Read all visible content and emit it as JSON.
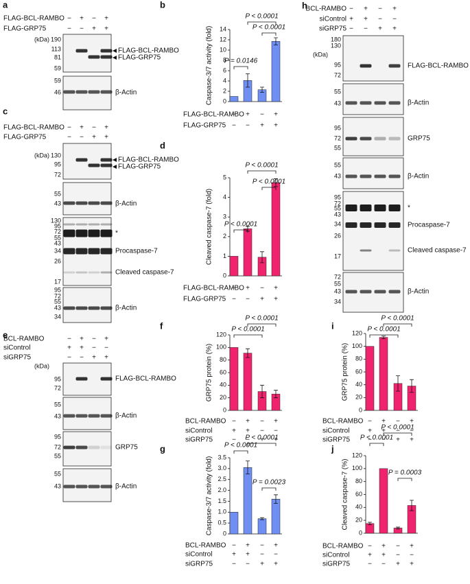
{
  "chart_data": [
    {
      "panel": "b",
      "type": "bar",
      "ylabel": "Caspase-3/7 activity (fold)",
      "color": "#6f8ff2",
      "values": [
        1,
        4.1,
        2.3,
        11.7
      ],
      "errors": [
        null,
        1.3,
        0.5,
        0.7
      ],
      "ylim": [
        0,
        14
      ],
      "yticks": [
        0,
        2,
        4,
        6,
        8,
        10,
        12,
        14
      ],
      "conditions": [
        {
          "name": "FLAG-BCL-RAMBO",
          "signs": [
            "−",
            "+",
            "−",
            "+"
          ]
        },
        {
          "name": "FLAG-GRP75",
          "signs": [
            "−",
            "−",
            "+",
            "+"
          ]
        }
      ],
      "comparisons": [
        "P = 0.0146",
        "P < 0.0001",
        "P < 0.0001"
      ]
    },
    {
      "panel": "d",
      "type": "bar",
      "ylabel": "Cleaved caspase-7 (fold)",
      "color": "#f0246e",
      "values": [
        1,
        2.4,
        0.95,
        4.75
      ],
      "errors": [
        null,
        0.12,
        0.28,
        0.2
      ],
      "ylim": [
        0,
        5
      ],
      "yticks": [
        0,
        1,
        2,
        3,
        4,
        5
      ],
      "conditions": [
        {
          "name": "FLAG-BCL-RAMBO",
          "signs": [
            "−",
            "+",
            "−",
            "+"
          ]
        },
        {
          "name": "FLAG-GRP75",
          "signs": [
            "−",
            "−",
            "+",
            "+"
          ]
        }
      ],
      "comparisons": [
        "P < 0.0001",
        "P < 0.0001",
        "P < 0.0001"
      ]
    },
    {
      "panel": "f",
      "type": "bar",
      "ylabel": "GRP75 protein (%)",
      "color": "#f0246e",
      "values": [
        100,
        91,
        30,
        26
      ],
      "errors": [
        null,
        7,
        10,
        6
      ],
      "ylim": [
        0,
        120
      ],
      "yticks": [
        0,
        20,
        40,
        60,
        80,
        100,
        120
      ],
      "conditions": [
        {
          "name": "BCL-RAMBO",
          "signs": [
            "−",
            "+",
            "−",
            "+"
          ]
        },
        {
          "name": "siControl",
          "signs": [
            "+",
            "+",
            "−",
            "−"
          ]
        },
        {
          "name": "siGRP75",
          "signs": [
            "−",
            "−",
            "+",
            "+"
          ]
        }
      ],
      "comparisons": [
        "P < 0.0001",
        "P < 0.0001"
      ]
    },
    {
      "panel": "g",
      "type": "bar",
      "ylabel": "Caspase-3/7 activity (fold)",
      "color": "#6f8ff2",
      "values": [
        1,
        3.05,
        0.7,
        1.6
      ],
      "errors": [
        null,
        0.3,
        0.05,
        0.2
      ],
      "ylim": [
        0,
        3.5
      ],
      "yticks": [
        0,
        0.5,
        {
          "value": 1,
          "label": "1.0"
        },
        1.5,
        {
          "value": 2,
          "label": "2.0"
        },
        2.5,
        {
          "value": 3,
          "label": "3.0"
        },
        3.5
      ],
      "conditions": [
        {
          "name": "BCL-RAMBO",
          "signs": [
            "−",
            "+",
            "−",
            "+"
          ]
        },
        {
          "name": "siControl",
          "signs": [
            "+",
            "+",
            "−",
            "−"
          ]
        },
        {
          "name": "siGRP75",
          "signs": [
            "−",
            "−",
            "+",
            "+"
          ]
        }
      ],
      "comparisons": [
        "P < 0.0001",
        "P < 0.0001",
        "P = 0.0023"
      ]
    },
    {
      "panel": "i",
      "type": "bar",
      "ylabel": "GRP75 protein (%)",
      "color": "#f0246e",
      "values": [
        100,
        114,
        42,
        38
      ],
      "errors": [
        null,
        2,
        12,
        10
      ],
      "ylim": [
        0,
        120
      ],
      "yticks": [
        0,
        20,
        40,
        60,
        80,
        100,
        120
      ],
      "conditions": [
        {
          "name": "BCL-RAMBO",
          "signs": [
            "−",
            "+",
            "−",
            "+"
          ]
        },
        {
          "name": "siControl",
          "signs": [
            "+",
            "+",
            "−",
            "−"
          ]
        },
        {
          "name": "siGRP75",
          "signs": [
            "−",
            "−",
            "+",
            "+"
          ]
        }
      ],
      "comparisons": [
        "P < 0.0001",
        "P < 0.0001"
      ]
    },
    {
      "panel": "j",
      "type": "bar",
      "ylabel": "Cleaved caspase-7 (%)",
      "color": "#f0246e",
      "values": [
        15,
        100,
        8,
        43
      ],
      "errors": [
        2,
        null,
        1.5,
        8
      ],
      "ylim": [
        0,
        120
      ],
      "yticks": [
        0,
        20,
        40,
        60,
        80,
        100,
        120
      ],
      "conditions": [
        {
          "name": "BCL-RAMBO",
          "signs": [
            "−",
            "+",
            "−",
            "+"
          ]
        },
        {
          "name": "siControl",
          "signs": [
            "+",
            "+",
            "−",
            "−"
          ]
        },
        {
          "name": "siGRP75",
          "signs": [
            "−",
            "−",
            "+",
            "+"
          ]
        }
      ],
      "comparisons": [
        "P < 0.0001",
        "P < 0.0001",
        "P = 0.0003"
      ]
    }
  ],
  "blots": [
    {
      "panel": "a",
      "conditions": [
        {
          "name": "FLAG-BCL-RAMBO",
          "signs": [
            "−",
            "+",
            "−",
            "+"
          ]
        },
        {
          "name": "FLAG-GRP75",
          "signs": [
            "−",
            "−",
            "+",
            "+"
          ]
        }
      ],
      "boxes": [
        {
          "kda": "(kDa)",
          "markers": [
            190,
            113,
            81,
            59
          ],
          "labels": [
            "FLAG-BCL-RAMBO",
            "FLAG-GRP75"
          ]
        },
        {
          "markers": [
            59,
            46
          ],
          "labels": [
            "β-Actin"
          ]
        }
      ]
    },
    {
      "panel": "c",
      "conditions": [
        {
          "name": "FLAG-BCL-RAMBO",
          "signs": [
            "−",
            "+",
            "−",
            "+"
          ]
        },
        {
          "name": "FLAG-GRP75",
          "signs": [
            "−",
            "−",
            "+",
            "+"
          ]
        }
      ],
      "boxes": [
        {
          "kda": "(kDa)",
          "markers": [
            130,
            95,
            72
          ],
          "labels": [
            "FLAG-BCL-RAMBO",
            "FLAG-GRP75"
          ]
        },
        {
          "markers": [
            55,
            43
          ],
          "labels": [
            "β-Actin"
          ]
        },
        {
          "markers": [
            130,
            95,
            72,
            55,
            43,
            34,
            26,
            17
          ],
          "labels": [
            "*",
            "Procaspase-7",
            "Cleaved caspase-7"
          ]
        },
        {
          "markers": [
            95,
            72,
            55,
            43,
            34
          ],
          "labels": [
            "β-Actin"
          ]
        }
      ]
    },
    {
      "panel": "e",
      "conditions": [
        {
          "name": "BCL-RAMBO",
          "signs": [
            "−",
            "+",
            "−",
            "+"
          ]
        },
        {
          "name": "siControl",
          "signs": [
            "+",
            "+",
            "−",
            "−"
          ]
        },
        {
          "name": "siGRP75",
          "signs": [
            "−",
            "−",
            "+",
            "+"
          ]
        }
      ],
      "boxes": [
        {
          "kda": "(kDa)",
          "markers": [
            95,
            72
          ],
          "labels": [
            "FLAG-BCL-RAMBO"
          ]
        },
        {
          "markers": [
            55,
            43
          ],
          "labels": [
            "β-Actin"
          ]
        },
        {
          "markers": [
            95,
            72,
            55
          ],
          "labels": [
            "GRP75"
          ]
        },
        {
          "markers": [
            55,
            43
          ],
          "labels": [
            "β-Actin"
          ]
        }
      ]
    },
    {
      "panel": "h",
      "conditions": [
        {
          "name": "BCL-RAMBO",
          "signs": [
            "−",
            "+",
            "−",
            "+"
          ]
        },
        {
          "name": "siControl",
          "signs": [
            "+",
            "+",
            "−",
            "−"
          ]
        },
        {
          "name": "siGRP75",
          "signs": [
            "−",
            "−",
            "+",
            "+"
          ]
        }
      ],
      "boxes": [
        {
          "kda": "(kDa)",
          "markers": [
            180,
            130,
            95,
            72
          ],
          "labels": [
            "FLAG-BCL-RAMBO"
          ]
        },
        {
          "markers": [
            55,
            43
          ],
          "labels": [
            "β-Actin"
          ]
        },
        {
          "markers": [
            95,
            72,
            55
          ],
          "labels": [
            "GRP75"
          ]
        },
        {
          "markers": [
            55,
            43
          ],
          "labels": [
            "β-Actin"
          ]
        },
        {
          "markers": [
            95,
            72,
            55,
            43,
            34,
            26,
            17
          ],
          "labels": [
            "*",
            "Procaspase-7",
            "Cleaved caspase-7"
          ]
        },
        {
          "markers": [
            72,
            55,
            43,
            34
          ],
          "labels": [
            "β-Actin"
          ]
        }
      ]
    }
  ]
}
